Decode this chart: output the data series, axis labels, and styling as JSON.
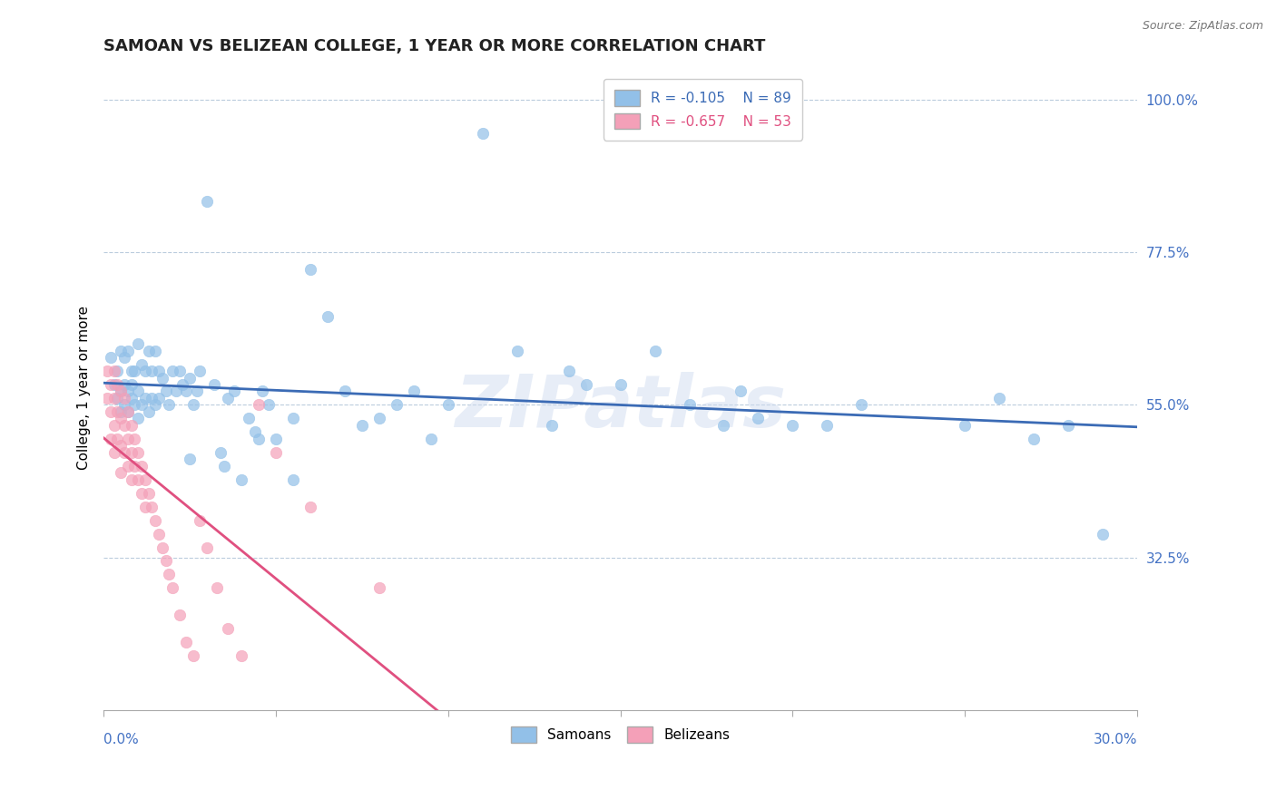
{
  "title": "SAMOAN VS BELIZEAN COLLEGE, 1 YEAR OR MORE CORRELATION CHART",
  "source_text": "Source: ZipAtlas.com",
  "ylabel": "College, 1 year or more",
  "yticks": [
    0.325,
    0.55,
    0.775,
    1.0
  ],
  "ytick_labels": [
    "32.5%",
    "55.0%",
    "77.5%",
    "100.0%"
  ],
  "xmin": 0.0,
  "xmax": 0.3,
  "ymin": 0.1,
  "ymax": 1.05,
  "samoans_R": -0.105,
  "samoans_N": 89,
  "belizeans_R": -0.657,
  "belizeans_N": 53,
  "samoan_color": "#92C0E8",
  "belizean_color": "#F4A0B8",
  "samoan_line_color": "#3B6BB5",
  "belizean_line_color": "#E05080",
  "watermark": "ZIPatlas",
  "samoans_x": [
    0.002,
    0.003,
    0.004,
    0.004,
    0.005,
    0.005,
    0.005,
    0.006,
    0.006,
    0.006,
    0.007,
    0.007,
    0.007,
    0.008,
    0.008,
    0.008,
    0.009,
    0.009,
    0.01,
    0.01,
    0.01,
    0.011,
    0.011,
    0.012,
    0.012,
    0.013,
    0.013,
    0.014,
    0.014,
    0.015,
    0.015,
    0.016,
    0.016,
    0.017,
    0.018,
    0.019,
    0.02,
    0.021,
    0.022,
    0.023,
    0.024,
    0.025,
    0.026,
    0.027,
    0.028,
    0.03,
    0.032,
    0.034,
    0.036,
    0.038,
    0.04,
    0.042,
    0.044,
    0.046,
    0.048,
    0.05,
    0.055,
    0.06,
    0.065,
    0.07,
    0.075,
    0.08,
    0.085,
    0.09,
    0.095,
    0.1,
    0.11,
    0.12,
    0.13,
    0.14,
    0.15,
    0.16,
    0.17,
    0.18,
    0.19,
    0.2,
    0.21,
    0.22,
    0.25,
    0.26,
    0.27,
    0.28,
    0.29,
    0.185,
    0.135,
    0.055,
    0.045,
    0.035,
    0.025
  ],
  "samoans_y": [
    0.62,
    0.58,
    0.6,
    0.56,
    0.57,
    0.63,
    0.54,
    0.58,
    0.55,
    0.62,
    0.57,
    0.63,
    0.54,
    0.6,
    0.56,
    0.58,
    0.6,
    0.55,
    0.64,
    0.57,
    0.53,
    0.61,
    0.55,
    0.6,
    0.56,
    0.63,
    0.54,
    0.6,
    0.56,
    0.63,
    0.55,
    0.6,
    0.56,
    0.59,
    0.57,
    0.55,
    0.6,
    0.57,
    0.6,
    0.58,
    0.57,
    0.59,
    0.55,
    0.57,
    0.6,
    0.85,
    0.58,
    0.48,
    0.56,
    0.57,
    0.44,
    0.53,
    0.51,
    0.57,
    0.55,
    0.5,
    0.53,
    0.75,
    0.68,
    0.57,
    0.52,
    0.53,
    0.55,
    0.57,
    0.5,
    0.55,
    0.95,
    0.63,
    0.52,
    0.58,
    0.58,
    0.63,
    0.55,
    0.52,
    0.53,
    0.52,
    0.52,
    0.55,
    0.52,
    0.56,
    0.5,
    0.52,
    0.36,
    0.57,
    0.6,
    0.44,
    0.5,
    0.46,
    0.47
  ],
  "belizeans_x": [
    0.001,
    0.001,
    0.002,
    0.002,
    0.002,
    0.003,
    0.003,
    0.003,
    0.003,
    0.004,
    0.004,
    0.004,
    0.005,
    0.005,
    0.005,
    0.005,
    0.006,
    0.006,
    0.006,
    0.007,
    0.007,
    0.007,
    0.008,
    0.008,
    0.008,
    0.009,
    0.009,
    0.01,
    0.01,
    0.011,
    0.011,
    0.012,
    0.012,
    0.013,
    0.014,
    0.015,
    0.016,
    0.017,
    0.018,
    0.019,
    0.02,
    0.022,
    0.024,
    0.026,
    0.028,
    0.03,
    0.033,
    0.036,
    0.04,
    0.045,
    0.05,
    0.06,
    0.08
  ],
  "belizeans_y": [
    0.6,
    0.56,
    0.58,
    0.54,
    0.5,
    0.6,
    0.56,
    0.52,
    0.48,
    0.58,
    0.54,
    0.5,
    0.57,
    0.53,
    0.49,
    0.45,
    0.56,
    0.52,
    0.48,
    0.54,
    0.5,
    0.46,
    0.52,
    0.48,
    0.44,
    0.5,
    0.46,
    0.48,
    0.44,
    0.46,
    0.42,
    0.44,
    0.4,
    0.42,
    0.4,
    0.38,
    0.36,
    0.34,
    0.32,
    0.3,
    0.28,
    0.24,
    0.2,
    0.18,
    0.38,
    0.34,
    0.28,
    0.22,
    0.18,
    0.55,
    0.48,
    0.4,
    0.28
  ]
}
